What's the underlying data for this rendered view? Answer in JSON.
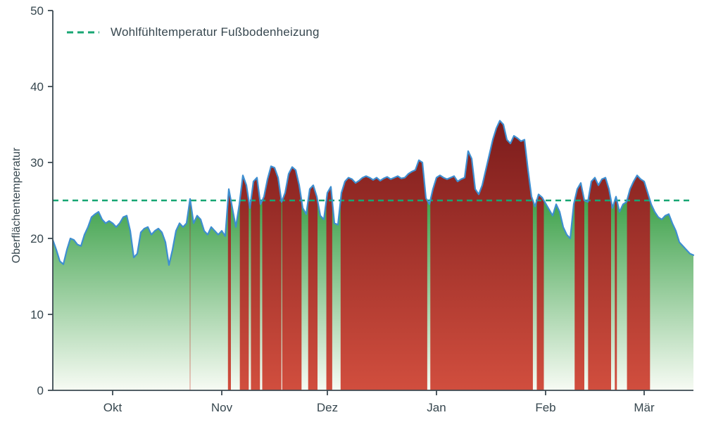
{
  "chart": {
    "legend_label": "Wohlfühltemperatur Fußbodenheizung",
    "ylabel": "Oberflächentemperatur"
  },
  "chart_data": {
    "type": "area",
    "title": "",
    "xlabel": "",
    "ylabel": "Oberflächentemperatur",
    "ylim": [
      0,
      50
    ],
    "y_ticks": [
      0,
      10,
      20,
      30,
      40,
      50
    ],
    "x_tick_labels": [
      "Okt",
      "Nov",
      "Dez",
      "Jan",
      "Feb",
      "Mär"
    ],
    "x_tick_days": [
      17,
      48,
      78,
      109,
      140,
      168
    ],
    "x_start_day": 0,
    "x_end_day": 182,
    "grid": false,
    "legend_position": "upper-left",
    "threshold": {
      "value": 25,
      "label": "Wohlfühltemperatur Fußbodenheizung",
      "style": "dashed",
      "color": "#17a673"
    },
    "fill_rule": "area under curve is green gradient where value <= threshold; full column from 0 to curve is red gradient where value > threshold",
    "series": [
      {
        "name": "Oberflächentemperatur",
        "unit": "°C",
        "x_unit": "day_index_from_mid_september",
        "values": [
          19.8,
          18.5,
          17.0,
          16.6,
          18.5,
          20.0,
          19.8,
          19.2,
          19.0,
          20.5,
          21.5,
          22.8,
          23.2,
          23.5,
          22.5,
          22.0,
          22.3,
          22.0,
          21.5,
          22.0,
          22.8,
          23.0,
          21.0,
          17.5,
          18.0,
          20.8,
          21.3,
          21.5,
          20.5,
          21.0,
          21.3,
          20.8,
          19.5,
          16.5,
          18.5,
          21.0,
          22.0,
          21.5,
          22.0,
          25.2,
          22.0,
          23.0,
          22.5,
          21.0,
          20.5,
          21.5,
          21.0,
          20.5,
          21.0,
          20.3,
          26.5,
          24.0,
          21.5,
          24.5,
          28.3,
          27.0,
          24.0,
          27.5,
          28.0,
          24.5,
          25.5,
          27.8,
          29.5,
          29.3,
          28.0,
          24.8,
          26.0,
          28.5,
          29.4,
          29.0,
          27.0,
          24.0,
          23.2,
          26.5,
          27.0,
          25.5,
          23.0,
          22.5,
          26.0,
          26.8,
          22.0,
          21.8,
          26.0,
          27.5,
          28.0,
          27.8,
          27.3,
          27.6,
          28.0,
          28.2,
          28.0,
          27.7,
          28.0,
          27.6,
          27.9,
          28.1,
          27.8,
          28.0,
          28.2,
          27.9,
          28.0,
          28.5,
          28.8,
          29.0,
          30.3,
          30.0,
          25.3,
          24.5,
          26.5,
          28.0,
          28.3,
          28.0,
          27.8,
          28.0,
          28.2,
          27.5,
          27.8,
          28.0,
          31.5,
          30.5,
          26.5,
          25.8,
          27.0,
          29.0,
          31.0,
          33.0,
          34.5,
          35.5,
          35.0,
          33.0,
          32.5,
          33.5,
          33.2,
          32.8,
          33.0,
          29.0,
          25.5,
          24.2,
          25.8,
          25.4,
          24.6,
          23.8,
          23.0,
          24.5,
          23.5,
          21.5,
          20.5,
          20.0,
          24.5,
          26.5,
          27.3,
          25.0,
          24.8,
          27.5,
          28.0,
          27.0,
          27.8,
          28.0,
          26.5,
          24.0,
          25.5,
          23.5,
          24.5,
          24.8,
          26.5,
          27.5,
          28.3,
          27.8,
          27.5,
          26.0,
          24.5,
          23.5,
          22.8,
          22.5,
          23.0,
          23.2,
          22.0,
          21.0,
          19.5,
          19.0,
          18.5,
          18.0,
          17.8
        ]
      }
    ],
    "colors": {
      "line": "#3e8ed0",
      "below_fill_top": "#3fa24c",
      "below_fill_bottom": "#f7fbf4",
      "above_fill_top": "#7a1b1b",
      "above_fill_bottom": "#d14e3e",
      "threshold_line": "#17a673",
      "axis_text": "#37474f",
      "spine": "#3c4a52"
    }
  }
}
